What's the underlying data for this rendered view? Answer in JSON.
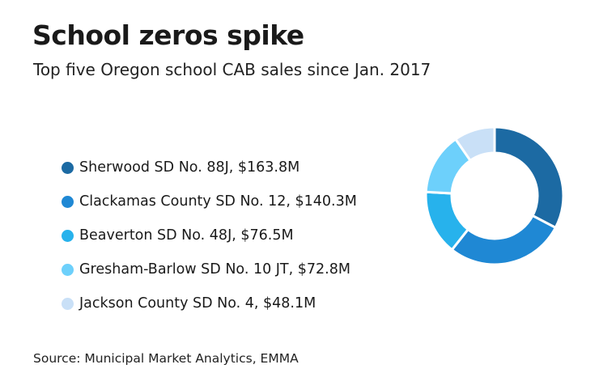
{
  "title": "School zeros spike",
  "subtitle": "Top five Oregon school CAB sales since Jan. 2017",
  "source": "Source: Municipal Market Analytics, EMMA",
  "chart_data": {
    "type": "pie",
    "variant": "donut",
    "unit": "$M",
    "legend_position": "left",
    "categories": [
      "Sherwood SD No. 88J",
      "Clackamas County SD No. 12",
      "Beaverton SD No. 48J",
      "Gresham-Barlow SD No. 10 JT",
      "Jackson County SD No. 4"
    ],
    "values": [
      163.8,
      140.3,
      76.5,
      72.8,
      48.1
    ],
    "legend_labels": [
      "Sherwood SD No. 88J, $163.8M",
      "Clackamas County SD No. 12, $140.3M",
      "Beaverton SD No. 48J, $76.5M",
      "Gresham-Barlow SD No. 10 JT, $72.8M",
      "Jackson County SD No. 4, $48.1M"
    ],
    "colors": [
      "#1c6aa3",
      "#1f88d4",
      "#27b2ec",
      "#6dd0fb",
      "#c9e0f7"
    ]
  }
}
